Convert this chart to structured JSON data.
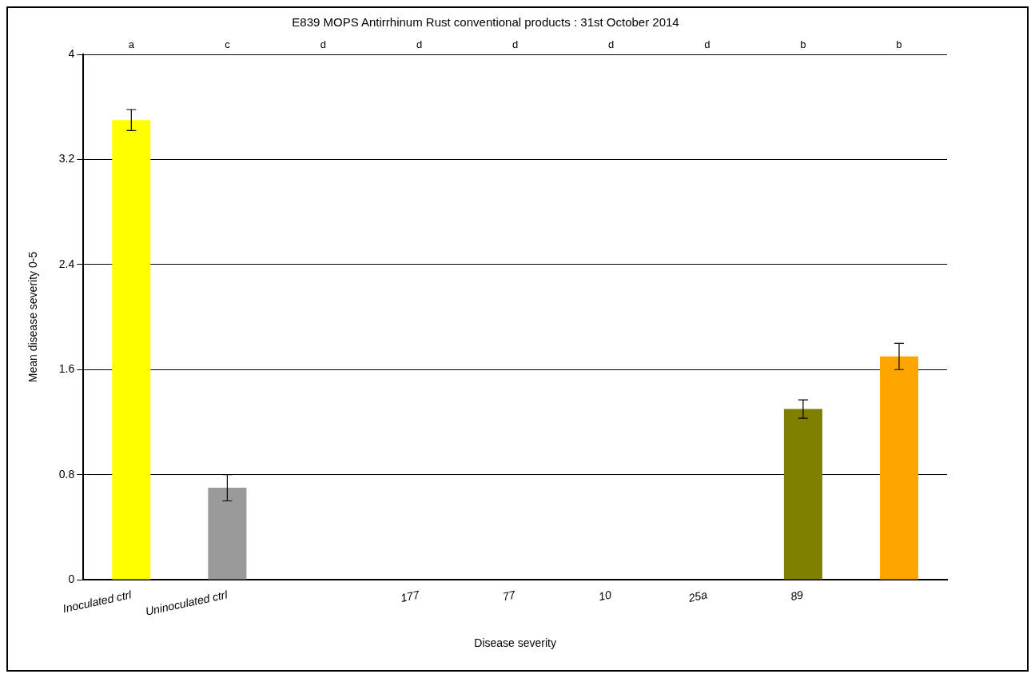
{
  "chart_data": {
    "type": "bar",
    "title": "E839 MOPS Antirrhinum Rust conventional products : 31st October 2014",
    "xlabel": "Disease severity",
    "ylabel": "Mean disease severity 0-5",
    "categories": [
      "Inoculated ctrl",
      "Uninoculated ctrl",
      null,
      "177",
      "77",
      "10",
      "25a",
      "89",
      null
    ],
    "values": [
      3.5,
      0.7,
      0,
      0,
      0,
      0,
      0,
      1.3,
      1.7
    ],
    "errors": [
      0.08,
      0.1,
      null,
      null,
      null,
      null,
      null,
      0.07,
      0.1
    ],
    "colors": [
      "#ffff00",
      "#9a9a9a",
      "#ffff00",
      "#ffff00",
      "#ffff00",
      "#ffff00",
      "#ffff00",
      "#808000",
      "#ffa500"
    ],
    "ylim": [
      0,
      4
    ],
    "yticks": [
      0,
      0.8,
      1.6,
      2.4,
      3.2,
      4
    ],
    "grid": "y",
    "legend": false,
    "annotations": [
      "a",
      "c",
      "d",
      "d",
      "d",
      "d",
      "d",
      "b",
      "b"
    ]
  }
}
